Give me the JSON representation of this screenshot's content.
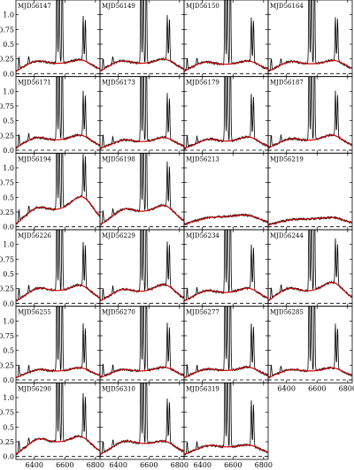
{
  "chart_data": {
    "type": "line",
    "layout": "small multiples grid, 4 columns, 6 rows",
    "xlim": [
      6280,
      6830
    ],
    "ylim": [
      -0.05,
      1.25
    ],
    "x_ticks": [
      6400,
      6600,
      6800
    ],
    "y_ticks": [
      0.0,
      0.25,
      0.5,
      0.75,
      1.0
    ],
    "x_tick_labels": [
      "6400",
      "6600",
      "6800"
    ],
    "y_tick_labels": [
      "0.0",
      "0.25",
      "0.5",
      "0.75",
      "1.0"
    ],
    "baseline": {
      "y": 0.0,
      "style": "dashed",
      "color": "#000000"
    },
    "series_style": {
      "observed": {
        "color": "#000000"
      },
      "model": {
        "color": "#cc0000"
      }
    },
    "emission_lines": [
      {
        "center": 6563,
        "height": 2.0
      },
      {
        "center": 6548,
        "height": 1.7
      },
      {
        "center": 6583,
        "height": 1.7
      },
      {
        "center": 6720,
        "height": 0.75
      },
      {
        "center": 6734,
        "height": 0.7
      },
      {
        "center": 6300,
        "height": 0.2
      },
      {
        "center": 6364,
        "height": 0.12
      }
    ],
    "panels": [
      {
        "label": "MJD56147",
        "continuum": 0.05,
        "blue_hump": 0.16,
        "red_hump": 0.18,
        "blue_center": 6420,
        "red_center": 6700,
        "width": 70,
        "line_scale": 1.0
      },
      {
        "label": "MJD56149",
        "continuum": 0.05,
        "blue_hump": 0.16,
        "red_hump": 0.19,
        "blue_center": 6420,
        "red_center": 6700,
        "width": 70,
        "line_scale": 1.0
      },
      {
        "label": "MJD56150",
        "continuum": 0.05,
        "blue_hump": 0.14,
        "red_hump": 0.16,
        "blue_center": 6420,
        "red_center": 6700,
        "width": 70,
        "line_scale": 1.0
      },
      {
        "label": "MJD56164",
        "continuum": 0.05,
        "blue_hump": 0.15,
        "red_hump": 0.17,
        "blue_center": 6430,
        "red_center": 6710,
        "width": 70,
        "line_scale": 1.0
      },
      {
        "label": "MJD56171",
        "continuum": 0.05,
        "blue_hump": 0.16,
        "red_hump": 0.2,
        "blue_center": 6420,
        "red_center": 6700,
        "width": 70,
        "line_scale": 1.0
      },
      {
        "label": "MJD56173",
        "continuum": 0.05,
        "blue_hump": 0.12,
        "red_hump": 0.16,
        "blue_center": 6440,
        "red_center": 6700,
        "width": 65,
        "line_scale": 1.0
      },
      {
        "label": "MJD56179",
        "continuum": 0.05,
        "blue_hump": 0.13,
        "red_hump": 0.17,
        "blue_center": 6440,
        "red_center": 6700,
        "width": 65,
        "line_scale": 1.0
      },
      {
        "label": "MJD56187",
        "continuum": 0.05,
        "blue_hump": 0.14,
        "red_hump": 0.2,
        "blue_center": 6430,
        "red_center": 6700,
        "width": 70,
        "line_scale": 1.0
      },
      {
        "label": "MJD56194",
        "continuum": 0.05,
        "blue_hump": 0.27,
        "red_hump": 0.45,
        "blue_center": 6430,
        "red_center": 6710,
        "width": 75,
        "line_scale": 1.0
      },
      {
        "label": "MJD56198",
        "continuum": 0.05,
        "blue_hump": 0.24,
        "red_hump": 0.3,
        "blue_center": 6440,
        "red_center": 6700,
        "width": 70,
        "line_scale": 1.0
      },
      {
        "label": "MJD56213",
        "continuum": 0.05,
        "blue_hump": 0.1,
        "red_hump": 0.14,
        "blue_center": 6450,
        "red_center": 6690,
        "width": 80,
        "line_scale": 0.0
      },
      {
        "label": "MJD56219",
        "continuum": 0.04,
        "blue_hump": 0.08,
        "red_hump": 0.11,
        "blue_center": 6450,
        "red_center": 6700,
        "width": 80,
        "line_scale": 0.0
      },
      {
        "label": "MJD56226",
        "continuum": 0.05,
        "blue_hump": 0.2,
        "red_hump": 0.25,
        "blue_center": 6430,
        "red_center": 6700,
        "width": 70,
        "line_scale": 1.0
      },
      {
        "label": "MJD56229",
        "continuum": 0.05,
        "blue_hump": 0.18,
        "red_hump": 0.26,
        "blue_center": 6430,
        "red_center": 6700,
        "width": 70,
        "line_scale": 1.0
      },
      {
        "label": "MJD56234",
        "continuum": 0.05,
        "blue_hump": 0.16,
        "red_hump": 0.2,
        "blue_center": 6430,
        "red_center": 6700,
        "width": 70,
        "line_scale": 1.0
      },
      {
        "label": "MJD56244",
        "continuum": 0.05,
        "blue_hump": 0.2,
        "red_hump": 0.3,
        "blue_center": 6420,
        "red_center": 6700,
        "width": 70,
        "line_scale": 1.0
      },
      {
        "label": "MJD56255",
        "continuum": 0.05,
        "blue_hump": 0.12,
        "red_hump": 0.15,
        "blue_center": 6430,
        "red_center": 6700,
        "width": 70,
        "line_scale": 1.0
      },
      {
        "label": "MJD56270",
        "continuum": 0.05,
        "blue_hump": 0.12,
        "red_hump": 0.16,
        "blue_center": 6430,
        "red_center": 6700,
        "width": 70,
        "line_scale": 1.0
      },
      {
        "label": "MJD56277",
        "continuum": 0.05,
        "blue_hump": 0.13,
        "red_hump": 0.16,
        "blue_center": 6430,
        "red_center": 6700,
        "width": 70,
        "line_scale": 1.0
      },
      {
        "label": "MJD56285",
        "continuum": 0.05,
        "blue_hump": 0.12,
        "red_hump": 0.15,
        "blue_center": 6430,
        "red_center": 6700,
        "width": 70,
        "line_scale": 1.0
      },
      {
        "label": "MJD56290",
        "continuum": 0.05,
        "blue_hump": 0.24,
        "red_hump": 0.28,
        "blue_center": 6430,
        "red_center": 6700,
        "width": 70,
        "line_scale": 1.0
      },
      {
        "label": "MJD56310",
        "continuum": 0.05,
        "blue_hump": 0.2,
        "red_hump": 0.2,
        "blue_center": 6440,
        "red_center": 6700,
        "width": 70,
        "line_scale": 1.0
      },
      {
        "label": "MJD56319",
        "continuum": 0.05,
        "blue_hump": 0.13,
        "red_hump": 0.14,
        "blue_center": 6440,
        "red_center": 6700,
        "width": 70,
        "line_scale": 1.0
      }
    ]
  }
}
